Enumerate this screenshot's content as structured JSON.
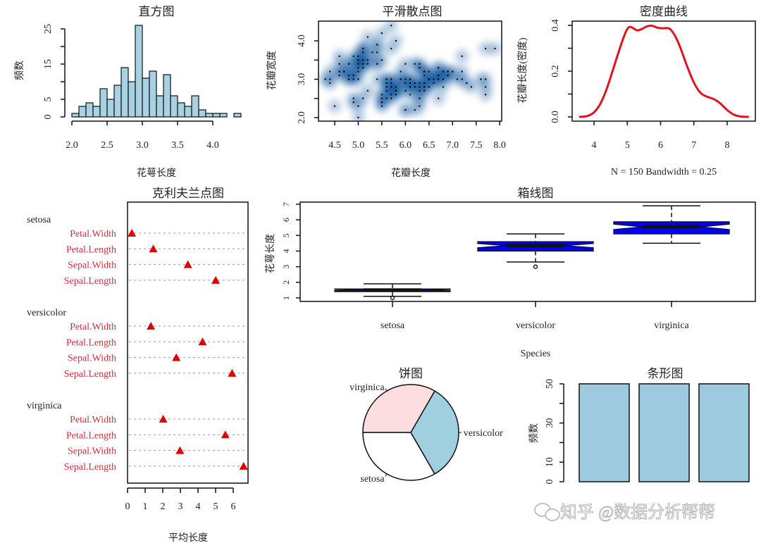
{
  "chart_data": [
    {
      "type": "bar",
      "subtype": "histogram",
      "title": "直方图",
      "xlabel": "花萼长度",
      "ylabel": "频数",
      "bin_start": 2.0,
      "bin_width": 0.1,
      "counts": [
        1,
        3,
        4,
        3,
        8,
        5,
        9,
        14,
        10,
        26,
        11,
        13,
        6,
        12,
        6,
        4,
        3,
        6,
        2,
        1,
        1,
        1,
        0,
        1
      ],
      "xticks": [
        2.0,
        2.5,
        3.0,
        3.5,
        4.0
      ],
      "xtick_labels": [
        "2.0",
        "2.5",
        "3.0",
        "3.5",
        "4.0"
      ],
      "yticks": [
        0,
        5,
        10,
        15,
        20,
        25
      ],
      "ytick_labels": [
        "0",
        "5",
        "",
        "15",
        "",
        "25"
      ],
      "ylim": [
        0,
        25
      ],
      "fill": "#A6D2E2"
    },
    {
      "type": "scatter",
      "subtype": "smoothScatter",
      "title": "平滑散点图",
      "xlabel": "花瓣长度",
      "ylabel": "花瓣宽度",
      "xlim": [
        4.16,
        8.04
      ],
      "ylim": [
        1.91,
        4.51
      ],
      "xticks": [
        4.5,
        5.0,
        5.5,
        6.0,
        6.5,
        7.0,
        7.5,
        8.0
      ],
      "xtick_labels": [
        "4.5",
        "5.0",
        "5.5",
        "6.0",
        "6.5",
        "7.0",
        "7.5",
        "8.0"
      ],
      "yticks": [
        2.0,
        2.5,
        3.0,
        3.5,
        4.0
      ],
      "ytick_labels": [
        "2.0",
        "",
        "3.0",
        "",
        "4.0"
      ],
      "density_color": "#08519C",
      "points": [
        [
          5.1,
          3.5
        ],
        [
          4.9,
          3.0
        ],
        [
          4.7,
          3.2
        ],
        [
          4.6,
          3.1
        ],
        [
          5.0,
          3.6
        ],
        [
          5.4,
          3.9
        ],
        [
          4.6,
          3.4
        ],
        [
          5.0,
          3.4
        ],
        [
          4.4,
          2.9
        ],
        [
          4.9,
          3.1
        ],
        [
          5.4,
          3.7
        ],
        [
          4.8,
          3.4
        ],
        [
          4.8,
          3.0
        ],
        [
          4.3,
          3.0
        ],
        [
          5.8,
          4.0
        ],
        [
          5.7,
          4.4
        ],
        [
          5.4,
          3.9
        ],
        [
          5.1,
          3.5
        ],
        [
          5.7,
          3.8
        ],
        [
          5.1,
          3.8
        ],
        [
          5.4,
          3.4
        ],
        [
          5.1,
          3.7
        ],
        [
          4.6,
          3.6
        ],
        [
          5.1,
          3.3
        ],
        [
          4.8,
          3.4
        ],
        [
          5.0,
          3.0
        ],
        [
          5.0,
          3.4
        ],
        [
          5.2,
          3.5
        ],
        [
          5.2,
          3.4
        ],
        [
          4.7,
          3.2
        ],
        [
          4.8,
          3.1
        ],
        [
          5.4,
          3.4
        ],
        [
          5.2,
          4.1
        ],
        [
          5.5,
          4.2
        ],
        [
          4.9,
          3.1
        ],
        [
          5.0,
          3.2
        ],
        [
          5.5,
          3.5
        ],
        [
          4.9,
          3.6
        ],
        [
          4.4,
          3.0
        ],
        [
          5.1,
          3.4
        ],
        [
          5.0,
          3.5
        ],
        [
          4.5,
          2.3
        ],
        [
          4.4,
          3.2
        ],
        [
          5.0,
          3.5
        ],
        [
          5.1,
          3.8
        ],
        [
          4.8,
          3.0
        ],
        [
          5.1,
          3.8
        ],
        [
          4.6,
          3.2
        ],
        [
          5.3,
          3.7
        ],
        [
          5.0,
          3.3
        ],
        [
          7.0,
          3.2
        ],
        [
          6.4,
          3.2
        ],
        [
          6.9,
          3.1
        ],
        [
          5.5,
          2.3
        ],
        [
          6.5,
          2.8
        ],
        [
          5.7,
          2.8
        ],
        [
          6.3,
          3.3
        ],
        [
          4.9,
          2.4
        ],
        [
          6.6,
          2.9
        ],
        [
          5.2,
          2.7
        ],
        [
          5.0,
          2.0
        ],
        [
          5.9,
          3.0
        ],
        [
          6.0,
          2.2
        ],
        [
          6.1,
          2.9
        ],
        [
          5.6,
          2.9
        ],
        [
          6.7,
          3.1
        ],
        [
          5.6,
          3.0
        ],
        [
          5.8,
          2.7
        ],
        [
          6.2,
          2.2
        ],
        [
          5.6,
          2.5
        ],
        [
          5.9,
          3.2
        ],
        [
          6.1,
          2.8
        ],
        [
          6.3,
          2.5
        ],
        [
          6.1,
          2.8
        ],
        [
          6.4,
          2.9
        ],
        [
          6.6,
          3.0
        ],
        [
          6.8,
          2.8
        ],
        [
          6.7,
          3.0
        ],
        [
          6.0,
          2.9
        ],
        [
          5.7,
          2.6
        ],
        [
          5.5,
          2.4
        ],
        [
          5.5,
          2.4
        ],
        [
          5.8,
          2.7
        ],
        [
          6.0,
          2.7
        ],
        [
          5.4,
          3.0
        ],
        [
          6.0,
          3.4
        ],
        [
          6.7,
          3.1
        ],
        [
          6.3,
          2.3
        ],
        [
          5.6,
          3.0
        ],
        [
          5.5,
          2.5
        ],
        [
          5.5,
          2.6
        ],
        [
          6.1,
          3.0
        ],
        [
          5.8,
          2.6
        ],
        [
          5.0,
          2.3
        ],
        [
          5.6,
          2.7
        ],
        [
          5.7,
          3.0
        ],
        [
          5.7,
          2.9
        ],
        [
          6.2,
          2.9
        ],
        [
          5.1,
          2.5
        ],
        [
          5.7,
          2.8
        ],
        [
          6.3,
          3.3
        ],
        [
          5.8,
          2.7
        ],
        [
          7.1,
          3.0
        ],
        [
          6.3,
          2.9
        ],
        [
          6.5,
          3.0
        ],
        [
          7.6,
          3.0
        ],
        [
          4.9,
          2.5
        ],
        [
          7.3,
          2.9
        ],
        [
          6.7,
          2.5
        ],
        [
          7.2,
          3.6
        ],
        [
          6.5,
          3.2
        ],
        [
          6.4,
          2.7
        ],
        [
          6.8,
          3.0
        ],
        [
          5.7,
          2.5
        ],
        [
          5.8,
          2.8
        ],
        [
          6.4,
          3.2
        ],
        [
          6.5,
          3.0
        ],
        [
          7.7,
          3.8
        ],
        [
          7.7,
          2.6
        ],
        [
          6.0,
          2.2
        ],
        [
          6.9,
          3.2
        ],
        [
          5.6,
          2.8
        ],
        [
          7.7,
          2.8
        ],
        [
          6.3,
          2.7
        ],
        [
          6.7,
          3.3
        ],
        [
          7.2,
          3.2
        ],
        [
          6.2,
          2.8
        ],
        [
          6.1,
          3.0
        ],
        [
          6.4,
          2.8
        ],
        [
          7.2,
          3.0
        ],
        [
          7.4,
          2.8
        ],
        [
          7.9,
          3.8
        ],
        [
          6.4,
          2.8
        ],
        [
          6.3,
          2.8
        ],
        [
          6.1,
          2.6
        ],
        [
          7.7,
          3.0
        ],
        [
          6.3,
          3.4
        ],
        [
          6.4,
          3.1
        ],
        [
          6.0,
          3.0
        ],
        [
          6.9,
          3.1
        ],
        [
          6.7,
          3.1
        ],
        [
          6.9,
          3.1
        ],
        [
          5.8,
          2.7
        ],
        [
          6.8,
          3.2
        ],
        [
          6.7,
          3.3
        ],
        [
          6.7,
          3.0
        ],
        [
          6.3,
          2.5
        ],
        [
          6.5,
          3.0
        ],
        [
          6.2,
          3.4
        ],
        [
          5.9,
          3.0
        ]
      ]
    },
    {
      "type": "line",
      "subtype": "density",
      "title": "密度曲线",
      "xlabel": "N = 150   Bandwidth = 0.25",
      "ylabel": "花瓣长度(密度)",
      "x": [
        3.55,
        3.8,
        4.0,
        4.2,
        4.4,
        4.6,
        4.8,
        4.95,
        5.05,
        5.15,
        5.3,
        5.45,
        5.6,
        5.75,
        5.9,
        6.05,
        6.2,
        6.3,
        6.45,
        6.6,
        6.8,
        7.0,
        7.2,
        7.4,
        7.6,
        7.8,
        8.0,
        8.2,
        8.4,
        8.65
      ],
      "y": [
        0.0,
        0.004,
        0.02,
        0.06,
        0.13,
        0.22,
        0.31,
        0.37,
        0.392,
        0.39,
        0.378,
        0.385,
        0.396,
        0.398,
        0.39,
        0.387,
        0.388,
        0.382,
        0.35,
        0.3,
        0.22,
        0.15,
        0.105,
        0.088,
        0.078,
        0.058,
        0.03,
        0.01,
        0.002,
        0.0
      ],
      "xlim": [
        3.35,
        8.85
      ],
      "ylim": [
        0,
        0.41
      ],
      "xticks": [
        4,
        5,
        6,
        7,
        8
      ],
      "xtick_labels": [
        "4",
        "5",
        "6",
        "7",
        "8"
      ],
      "yticks": [
        0.0,
        0.1,
        0.2,
        0.3,
        0.4
      ],
      "ytick_labels": [
        "0.0",
        "",
        "0.2",
        "",
        "0.4"
      ],
      "color": "#E0141E"
    },
    {
      "type": "scatter",
      "subtype": "dotchart",
      "title": "克利夫兰点图",
      "xlabel": "平均长度",
      "xticks": [
        0,
        1,
        2,
        3,
        4,
        5,
        6
      ],
      "xtick_labels": [
        "0",
        "1",
        "2",
        "3",
        "4",
        "5",
        "6"
      ],
      "marker_color": "#E00000",
      "label_color": "#D0303A",
      "groups": [
        {
          "name": "setosa",
          "items": [
            {
              "label": "Petal.Width",
              "value": 0.246
            },
            {
              "label": "Petal.Length",
              "value": 1.462
            },
            {
              "label": "Sepal.Width",
              "value": 3.428
            },
            {
              "label": "Sepal.Length",
              "value": 5.006
            }
          ]
        },
        {
          "name": "versicolor",
          "items": [
            {
              "label": "Petal.Width",
              "value": 1.326
            },
            {
              "label": "Petal.Length",
              "value": 4.26
            },
            {
              "label": "Sepal.Width",
              "value": 2.77
            },
            {
              "label": "Sepal.Length",
              "value": 5.936
            }
          ]
        },
        {
          "name": "virginica",
          "items": [
            {
              "label": "Petal.Width",
              "value": 2.026
            },
            {
              "label": "Petal.Length",
              "value": 5.552
            },
            {
              "label": "Sepal.Width",
              "value": 2.974
            },
            {
              "label": "Sepal.Length",
              "value": 6.588
            }
          ]
        }
      ]
    },
    {
      "type": "box",
      "title": "箱线图",
      "xlabel": "Species",
      "ylabel": "花萼长度",
      "notch": true,
      "fill": "#0000FF",
      "ylim": [
        0.8,
        7.2
      ],
      "yticks": [
        1,
        2,
        3,
        4,
        5,
        6,
        7
      ],
      "ytick_labels": [
        "1",
        "2",
        "3",
        "4",
        "5",
        "6",
        "7"
      ],
      "boxes": [
        {
          "name": "setosa",
          "min": 1.1,
          "q1": 1.4,
          "median": 1.5,
          "q3": 1.575,
          "max": 1.9,
          "outliers": [
            1.0
          ]
        },
        {
          "name": "versicolor",
          "min": 3.3,
          "q1": 4.0,
          "median": 4.35,
          "q3": 4.6,
          "max": 5.1,
          "outliers": [
            3.0
          ]
        },
        {
          "name": "virginica",
          "min": 4.5,
          "q1": 5.1,
          "median": 5.55,
          "q3": 5.875,
          "max": 6.9,
          "outliers": []
        }
      ]
    },
    {
      "type": "pie",
      "title": "饼图",
      "slices": [
        {
          "label": "setosa",
          "value": 50,
          "color": "#FFFFFF"
        },
        {
          "label": "versicolor",
          "value": 50,
          "color": "#A0CFE0"
        },
        {
          "label": "virginica",
          "value": 50,
          "color": "#FDDEDE"
        }
      ]
    },
    {
      "type": "bar",
      "title": "条形图",
      "ylabel": "频数",
      "values": [
        50,
        50,
        50
      ],
      "ylim": [
        0,
        50
      ],
      "yticks": [
        0,
        10,
        20,
        30,
        40,
        50
      ],
      "ytick_labels": [
        "0",
        "10",
        "",
        "30",
        "",
        "50"
      ],
      "fill": "#9ECAE0"
    }
  ],
  "watermark": "知乎 @数据分析帮帮"
}
